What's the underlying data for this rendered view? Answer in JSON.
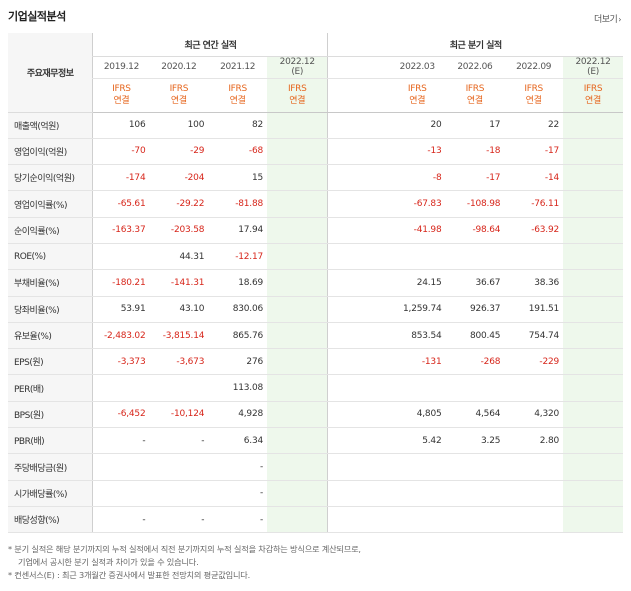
{
  "title": "기업실적분석",
  "more_label": "더보기",
  "header": {
    "label_col": "주요재무정보",
    "annual_group": "최근 연간 실적",
    "quarter_group": "최근 분기 실적"
  },
  "columns": [
    {
      "period": "2019.12",
      "std": "IFRS",
      "basis": "연결",
      "est": false,
      "group": "annual"
    },
    {
      "period": "2020.12",
      "std": "IFRS",
      "basis": "연결",
      "est": false,
      "group": "annual"
    },
    {
      "period": "2021.12",
      "std": "IFRS",
      "basis": "연결",
      "est": false,
      "group": "annual"
    },
    {
      "period": "2022.12",
      "suffix": "(E)",
      "std": "IFRS",
      "basis": "연결",
      "est": true,
      "group": "annual"
    },
    {
      "period": "",
      "std": "",
      "basis": "",
      "est": false,
      "group": "quarter"
    },
    {
      "period": "2022.03",
      "std": "IFRS",
      "basis": "연결",
      "est": false,
      "group": "quarter"
    },
    {
      "period": "2022.06",
      "std": "IFRS",
      "basis": "연결",
      "est": false,
      "group": "quarter"
    },
    {
      "period": "2022.09",
      "std": "IFRS",
      "basis": "연결",
      "est": false,
      "group": "quarter"
    },
    {
      "period": "2022.12",
      "suffix": "(E)",
      "std": "IFRS",
      "basis": "연결",
      "est": true,
      "group": "quarter"
    }
  ],
  "rows": [
    {
      "label": "매출액(억원)",
      "values": [
        "106",
        "100",
        "82",
        "",
        "",
        "20",
        "17",
        "22",
        ""
      ]
    },
    {
      "label": "영업이익(억원)",
      "values": [
        "-70",
        "-29",
        "-68",
        "",
        "",
        "-13",
        "-18",
        "-17",
        ""
      ]
    },
    {
      "label": "당기순이익(억원)",
      "values": [
        "-174",
        "-204",
        "15",
        "",
        "",
        "-8",
        "-17",
        "-14",
        ""
      ]
    },
    {
      "label": "영업이익률(%)",
      "values": [
        "-65.61",
        "-29.22",
        "-81.88",
        "",
        "",
        "-67.83",
        "-108.98",
        "-76.11",
        ""
      ],
      "sep": true
    },
    {
      "label": "순이익률(%)",
      "values": [
        "-163.37",
        "-203.58",
        "17.94",
        "",
        "",
        "-41.98",
        "-98.64",
        "-63.92",
        ""
      ]
    },
    {
      "label": "ROE(%)",
      "values": [
        "",
        "44.31",
        "-12.17",
        "",
        "",
        "",
        "",
        "",
        ""
      ]
    },
    {
      "label": "부채비율(%)",
      "values": [
        "-180.21",
        "-141.31",
        "18.69",
        "",
        "",
        "24.15",
        "36.67",
        "38.36",
        ""
      ],
      "sep": true
    },
    {
      "label": "당좌비율(%)",
      "values": [
        "53.91",
        "43.10",
        "830.06",
        "",
        "",
        "1,259.74",
        "926.37",
        "191.51",
        ""
      ]
    },
    {
      "label": "유보율(%)",
      "values": [
        "-2,483.02",
        "-3,815.14",
        "865.76",
        "",
        "",
        "853.54",
        "800.45",
        "754.74",
        ""
      ]
    },
    {
      "label": "EPS(원)",
      "values": [
        "-3,373",
        "-3,673",
        "276",
        "",
        "",
        "-131",
        "-268",
        "-229",
        ""
      ],
      "sep": true
    },
    {
      "label": "PER(배)",
      "values": [
        "",
        "",
        "113.08",
        "",
        "",
        "",
        "",
        "",
        ""
      ]
    },
    {
      "label": "BPS(원)",
      "values": [
        "-6,452",
        "-10,124",
        "4,928",
        "",
        "",
        "4,805",
        "4,564",
        "4,320",
        ""
      ]
    },
    {
      "label": "PBR(배)",
      "values": [
        "-",
        "-",
        "6.34",
        "",
        "",
        "5.42",
        "3.25",
        "2.80",
        ""
      ]
    },
    {
      "label": "주당배당금(원)",
      "values": [
        "",
        "",
        "-",
        "",
        "",
        "",
        "",
        "",
        ""
      ],
      "sep": true
    },
    {
      "label": "시가배당률(%)",
      "values": [
        "",
        "",
        "-",
        "",
        "",
        "",
        "",
        "",
        ""
      ]
    },
    {
      "label": "배당성향(%)",
      "values": [
        "-",
        "-",
        "-",
        "",
        "",
        "",
        "",
        "",
        ""
      ]
    }
  ],
  "footer": [
    "* 분기 실적은 해당 분기까지의 누적 실적에서 직전 분기까지의 누적 실적을 차감하는 방식으로 계산되므로,",
    "기업에서 공시한 분기 실적과 차이가 있을 수 있습니다.",
    "* 컨센서스(E) : 최근 3개월간 증권사에서 발표한 전망치의 평균값입니다."
  ],
  "colors": {
    "negative": "#d7261b",
    "ifrs": "#e6661e",
    "estimate_bg": "#eef8ec"
  }
}
